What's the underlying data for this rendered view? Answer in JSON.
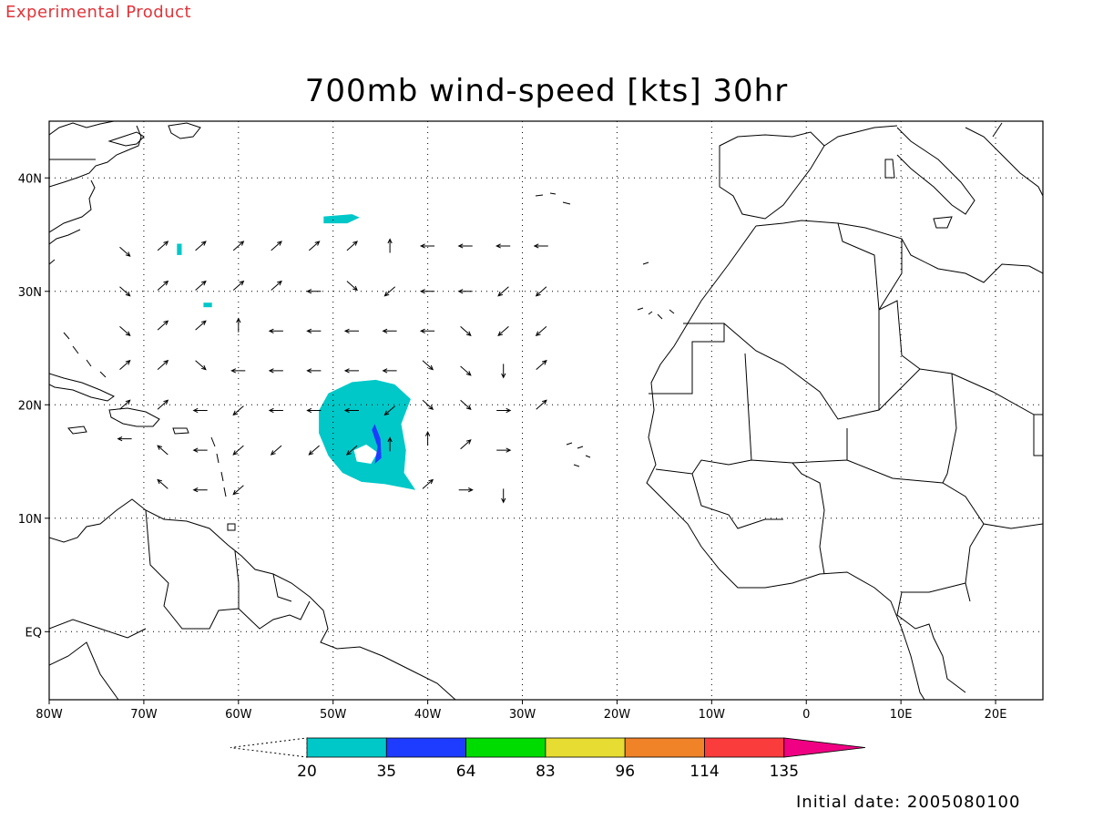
{
  "banner": "Experimental Product",
  "title": "700mb wind-speed [kts] 30hr",
  "initial_date_text": "Initial date: 2005080100",
  "map": {
    "lon_range": [
      -80,
      25
    ],
    "lat_range": [
      -6,
      45
    ],
    "lon_ticks": [
      {
        "value": -80,
        "label": "80W"
      },
      {
        "value": -70,
        "label": "70W"
      },
      {
        "value": -60,
        "label": "60W"
      },
      {
        "value": -50,
        "label": "50W"
      },
      {
        "value": -40,
        "label": "40W"
      },
      {
        "value": -30,
        "label": "30W"
      },
      {
        "value": -20,
        "label": "20W"
      },
      {
        "value": -10,
        "label": "10W"
      },
      {
        "value": 0,
        "label": "0"
      },
      {
        "value": 10,
        "label": "10E"
      },
      {
        "value": 20,
        "label": "20E"
      }
    ],
    "lat_ticks": [
      {
        "value": 40,
        "label": "40N"
      },
      {
        "value": 30,
        "label": "30N"
      },
      {
        "value": 20,
        "label": "20N"
      },
      {
        "value": 10,
        "label": "10N"
      },
      {
        "value": 0,
        "label": "EQ"
      }
    ],
    "grid": "dotted"
  },
  "colorbar": {
    "labels": [
      "20",
      "35",
      "64",
      "83",
      "96",
      "114",
      "135"
    ],
    "colors": [
      "#00c8c8",
      "#1e3cff",
      "#00dc00",
      "#e6dc32",
      "#f08228",
      "#fa3c3c",
      "#f00082"
    ]
  },
  "shaded_regions": [
    {
      "name": "storm-20kt-area",
      "level": "20-35",
      "color": "#00c8c8",
      "lonlat": [
        [
          -45.5,
          22.2
        ],
        [
          -48,
          22
        ],
        [
          -50.5,
          21
        ],
        [
          -51.5,
          19.5
        ],
        [
          -51.5,
          17.5
        ],
        [
          -50.5,
          15.5
        ],
        [
          -49,
          14
        ],
        [
          -47,
          13.2
        ],
        [
          -44.5,
          13
        ],
        [
          -41.3,
          12.5
        ],
        [
          -42.5,
          14
        ],
        [
          -42.3,
          16
        ],
        [
          -42.8,
          18.3
        ],
        [
          -41.8,
          20.5
        ],
        [
          -43.5,
          21.8
        ]
      ]
    },
    {
      "name": "storm-eye",
      "level": "calm",
      "color": "#ffffff",
      "lonlat": [
        [
          -46.5,
          16.5
        ],
        [
          -47.8,
          16
        ],
        [
          -47.5,
          15
        ],
        [
          -46,
          14.8
        ],
        [
          -45.3,
          15.8
        ]
      ]
    },
    {
      "name": "storm-35kt-band",
      "level": "35-64",
      "color": "#1e3cff",
      "lonlat": [
        [
          -45.6,
          18.3
        ],
        [
          -45,
          17
        ],
        [
          -44.9,
          15.3
        ],
        [
          -45.6,
          14.8
        ],
        [
          -45.3,
          16.3
        ],
        [
          -45.9,
          17.8
        ]
      ]
    },
    {
      "name": "small-20kt-patch-north",
      "level": "20-35",
      "color": "#00c8c8",
      "lonlat": [
        [
          -51,
          36.6
        ],
        [
          -48,
          36.8
        ],
        [
          -47.2,
          36.5
        ],
        [
          -48.5,
          36
        ],
        [
          -51,
          36
        ]
      ]
    },
    {
      "name": "small-20kt-patch-west-1",
      "level": "20-35",
      "color": "#00c8c8",
      "lonlat": [
        [
          -66.5,
          34.2
        ],
        [
          -66,
          34.2
        ],
        [
          -66,
          33.2
        ],
        [
          -66.5,
          33.2
        ]
      ]
    },
    {
      "name": "small-20kt-patch-west-2",
      "level": "20-35",
      "color": "#00c8c8",
      "lonlat": [
        [
          -63.7,
          29
        ],
        [
          -62.8,
          29
        ],
        [
          -62.8,
          28.6
        ],
        [
          -63.7,
          28.6
        ]
      ]
    }
  ],
  "wind_vectors": [
    {
      "lon": -72,
      "lat": 33.5,
      "dir": "SE"
    },
    {
      "lon": -68,
      "lat": 34,
      "dir": "NE"
    },
    {
      "lon": -64,
      "lat": 34,
      "dir": "NE"
    },
    {
      "lon": -60,
      "lat": 34,
      "dir": "NE"
    },
    {
      "lon": -56,
      "lat": 34,
      "dir": "NE"
    },
    {
      "lon": -52,
      "lat": 34,
      "dir": "NE"
    },
    {
      "lon": -48,
      "lat": 34,
      "dir": "NE"
    },
    {
      "lon": -44,
      "lat": 34,
      "dir": "N"
    },
    {
      "lon": -40,
      "lat": 34,
      "dir": "W"
    },
    {
      "lon": -36,
      "lat": 34,
      "dir": "W"
    },
    {
      "lon": -32,
      "lat": 34,
      "dir": "W"
    },
    {
      "lon": -28,
      "lat": 34,
      "dir": "W"
    },
    {
      "lon": -72,
      "lat": 30,
      "dir": "SE"
    },
    {
      "lon": -68,
      "lat": 30.5,
      "dir": "NE"
    },
    {
      "lon": -64,
      "lat": 30.5,
      "dir": "NE"
    },
    {
      "lon": -60,
      "lat": 30.5,
      "dir": "NE"
    },
    {
      "lon": -56,
      "lat": 30.5,
      "dir": "NE"
    },
    {
      "lon": -52,
      "lat": 30,
      "dir": "W"
    },
    {
      "lon": -48,
      "lat": 30.5,
      "dir": "SE"
    },
    {
      "lon": -44,
      "lat": 30,
      "dir": "SW"
    },
    {
      "lon": -40,
      "lat": 30,
      "dir": "W"
    },
    {
      "lon": -36,
      "lat": 30,
      "dir": "W"
    },
    {
      "lon": -32,
      "lat": 30,
      "dir": "SW"
    },
    {
      "lon": -28,
      "lat": 30,
      "dir": "SW"
    },
    {
      "lon": -72,
      "lat": 26.5,
      "dir": "SE"
    },
    {
      "lon": -68,
      "lat": 27,
      "dir": "NE"
    },
    {
      "lon": -64,
      "lat": 27,
      "dir": "NE"
    },
    {
      "lon": -60,
      "lat": 27,
      "dir": "N"
    },
    {
      "lon": -56,
      "lat": 26.5,
      "dir": "W"
    },
    {
      "lon": -52,
      "lat": 26.5,
      "dir": "W"
    },
    {
      "lon": -48,
      "lat": 26.5,
      "dir": "W"
    },
    {
      "lon": -44,
      "lat": 26.5,
      "dir": "W"
    },
    {
      "lon": -40,
      "lat": 26.5,
      "dir": "W"
    },
    {
      "lon": -36,
      "lat": 26.5,
      "dir": "SE"
    },
    {
      "lon": -32,
      "lat": 26.5,
      "dir": "SW"
    },
    {
      "lon": -28,
      "lat": 26.5,
      "dir": "SW"
    },
    {
      "lon": -72,
      "lat": 23.5,
      "dir": "NE"
    },
    {
      "lon": -68,
      "lat": 23.5,
      "dir": "NE"
    },
    {
      "lon": -64,
      "lat": 23.5,
      "dir": "SE"
    },
    {
      "lon": -60,
      "lat": 23,
      "dir": "W"
    },
    {
      "lon": -56,
      "lat": 23,
      "dir": "W"
    },
    {
      "lon": -52,
      "lat": 23,
      "dir": "W"
    },
    {
      "lon": -48,
      "lat": 23,
      "dir": "W"
    },
    {
      "lon": -44,
      "lat": 23,
      "dir": "W"
    },
    {
      "lon": -40,
      "lat": 23.5,
      "dir": "SE"
    },
    {
      "lon": -36,
      "lat": 23,
      "dir": "SE"
    },
    {
      "lon": -32,
      "lat": 23,
      "dir": "S"
    },
    {
      "lon": -28,
      "lat": 23.5,
      "dir": "NE"
    },
    {
      "lon": -72,
      "lat": 20,
      "dir": "NE"
    },
    {
      "lon": -68,
      "lat": 20,
      "dir": "NE"
    },
    {
      "lon": -64,
      "lat": 19.5,
      "dir": "W"
    },
    {
      "lon": -60,
      "lat": 19.5,
      "dir": "SW"
    },
    {
      "lon": -56,
      "lat": 19.5,
      "dir": "W"
    },
    {
      "lon": -52,
      "lat": 19.5,
      "dir": "W"
    },
    {
      "lon": -48,
      "lat": 19.5,
      "dir": "W"
    },
    {
      "lon": -44,
      "lat": 19.5,
      "dir": "SW"
    },
    {
      "lon": -40,
      "lat": 20,
      "dir": "SE"
    },
    {
      "lon": -36,
      "lat": 20,
      "dir": "SE"
    },
    {
      "lon": -32,
      "lat": 19.5,
      "dir": "E"
    },
    {
      "lon": -28,
      "lat": 20,
      "dir": "NE"
    },
    {
      "lon": -72,
      "lat": 17,
      "dir": "W"
    },
    {
      "lon": -68,
      "lat": 16,
      "dir": "NW"
    },
    {
      "lon": -64,
      "lat": 16,
      "dir": "W"
    },
    {
      "lon": -60,
      "lat": 16,
      "dir": "SW"
    },
    {
      "lon": -56,
      "lat": 16,
      "dir": "SW"
    },
    {
      "lon": -52,
      "lat": 16,
      "dir": "SW"
    },
    {
      "lon": -48,
      "lat": 16,
      "dir": "SW"
    },
    {
      "lon": -44,
      "lat": 16.5,
      "dir": "N"
    },
    {
      "lon": -40,
      "lat": 17,
      "dir": "N"
    },
    {
      "lon": -36,
      "lat": 16.5,
      "dir": "NE"
    },
    {
      "lon": -32,
      "lat": 16,
      "dir": "E"
    },
    {
      "lon": -68,
      "lat": 13,
      "dir": "NW"
    },
    {
      "lon": -64,
      "lat": 12.5,
      "dir": "W"
    },
    {
      "lon": -60,
      "lat": 12.5,
      "dir": "SW"
    },
    {
      "lon": -40,
      "lat": 13,
      "dir": "NE"
    },
    {
      "lon": -36,
      "lat": 12.5,
      "dir": "E"
    },
    {
      "lon": -32,
      "lat": 12,
      "dir": "S"
    }
  ]
}
